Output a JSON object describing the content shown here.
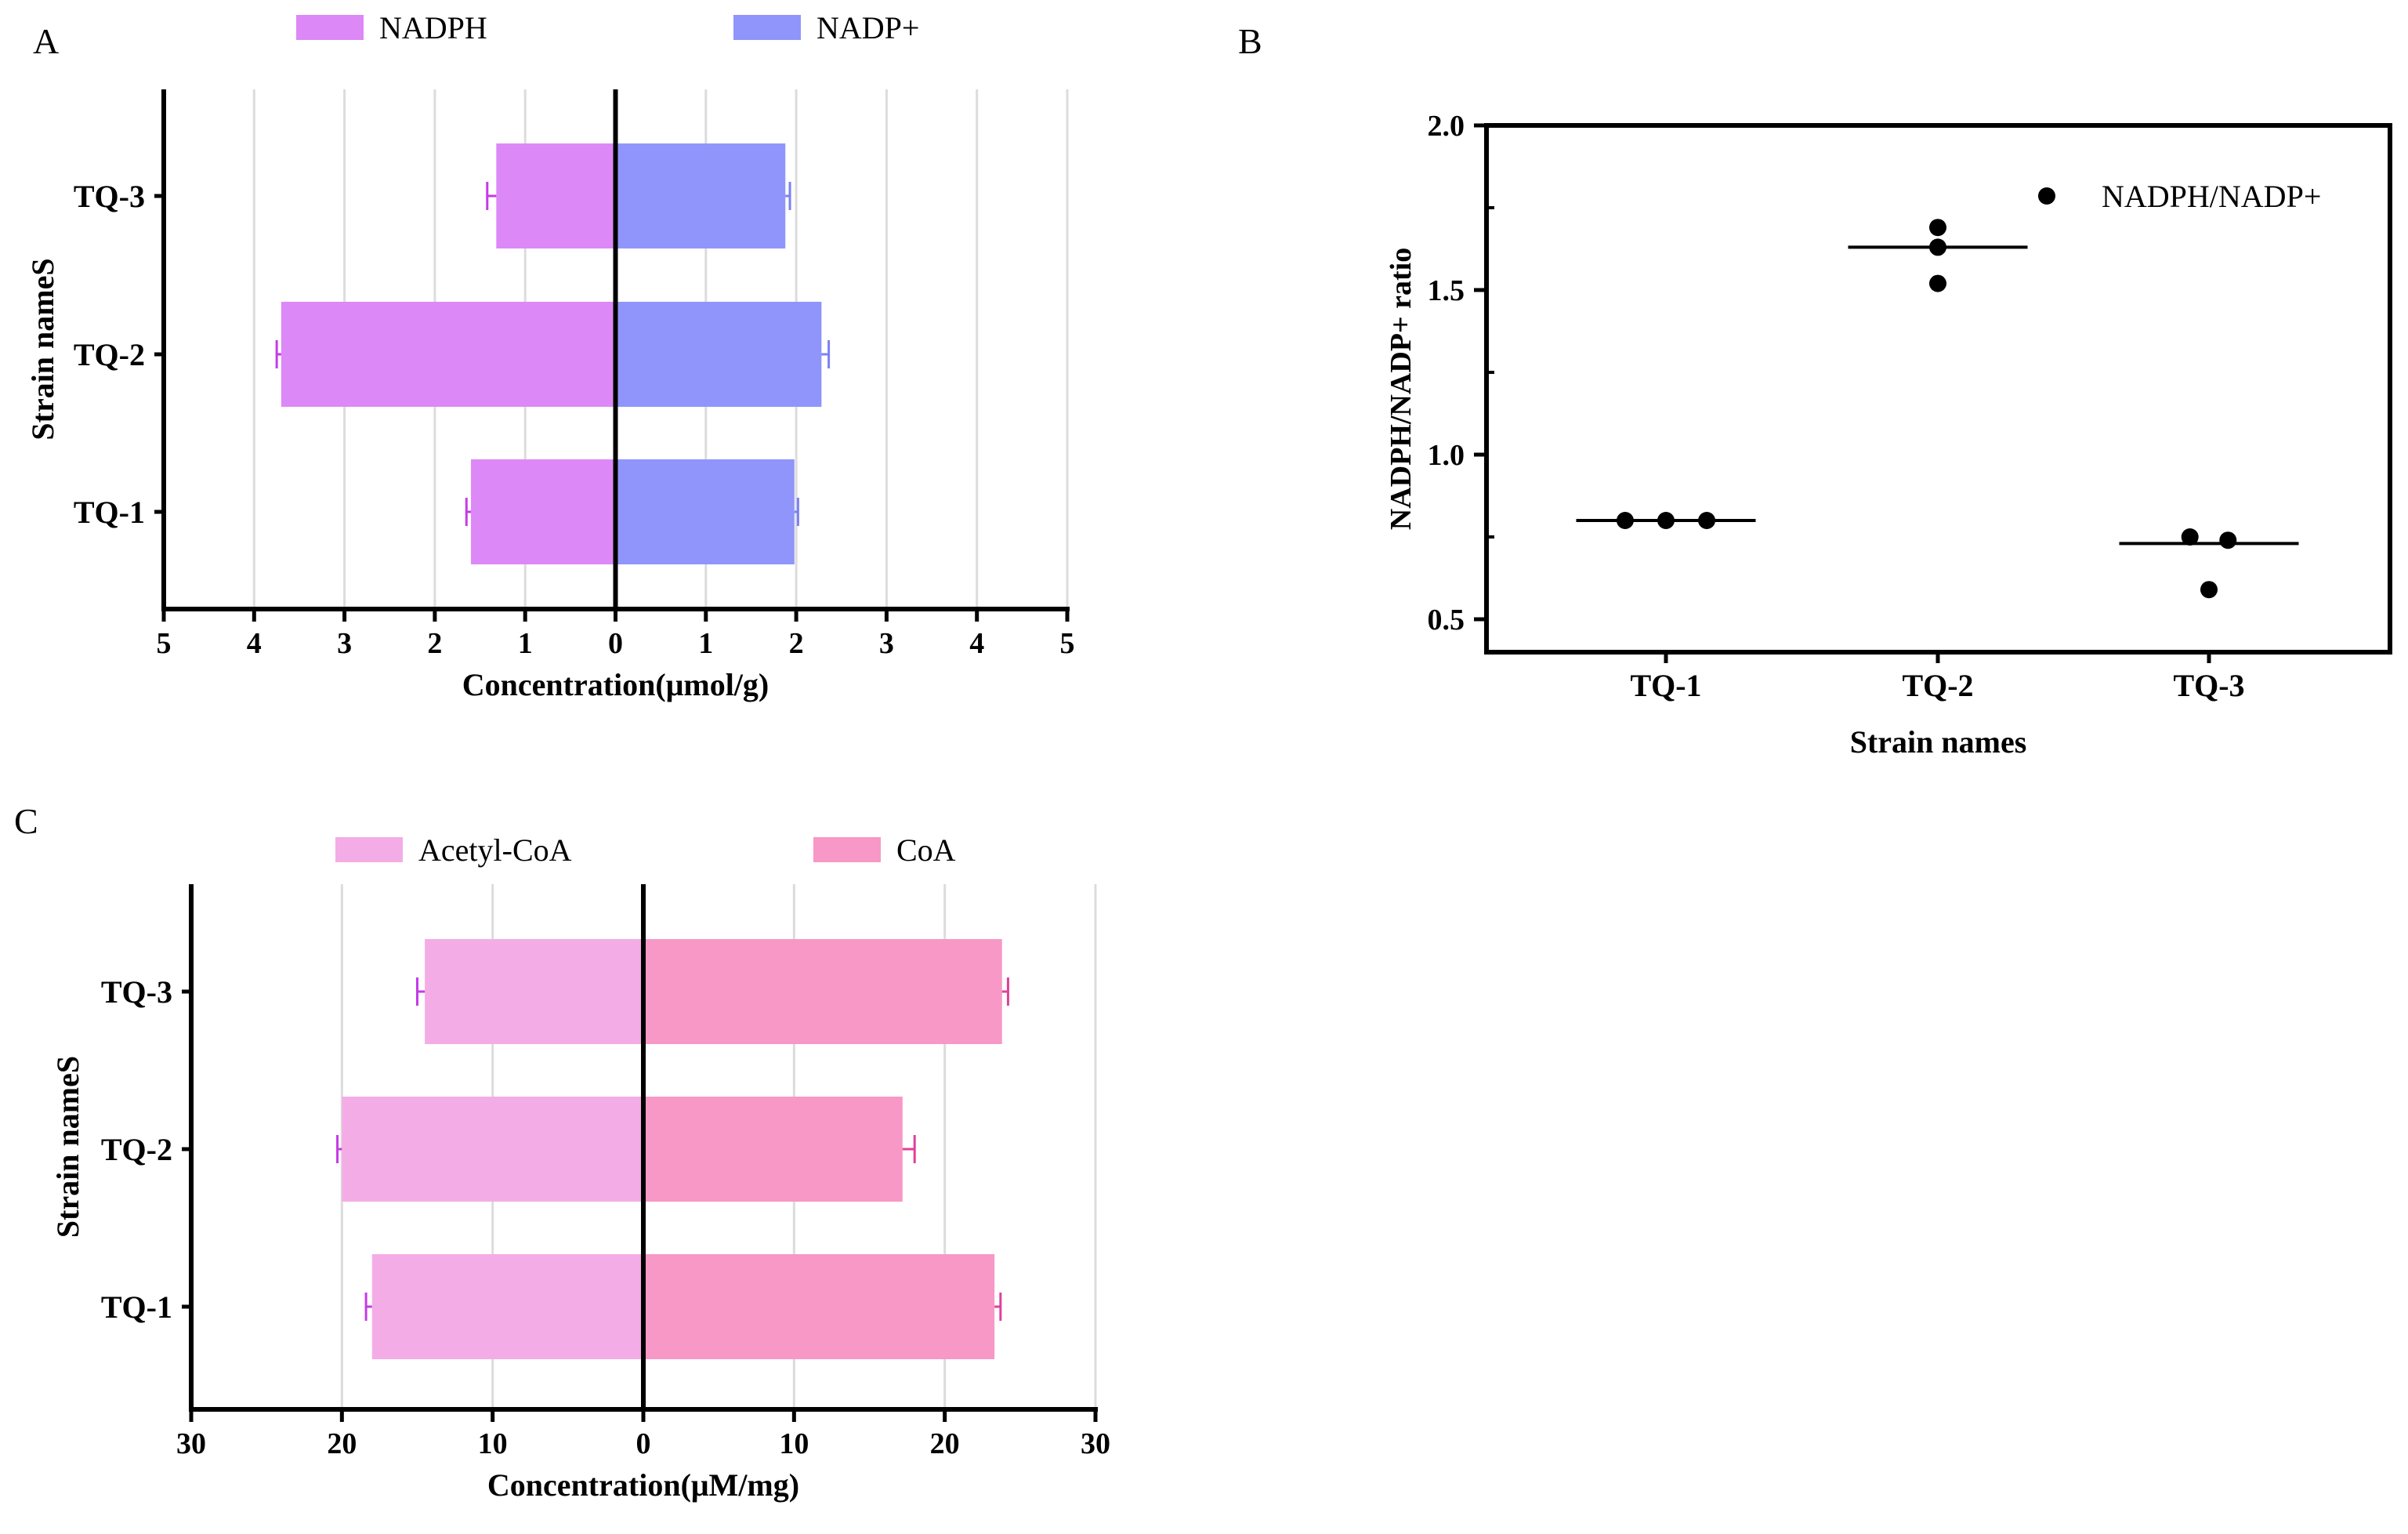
{
  "chart_data": [
    {
      "panel": "A",
      "type": "bar",
      "orientation": "horizontal-butterfly",
      "categories": [
        "TQ-1",
        "TQ-2",
        "TQ-3"
      ],
      "series": [
        {
          "name": "NADPH",
          "side": "left",
          "color": "#dd88f7",
          "values": [
            1.6,
            3.7,
            1.32
          ],
          "errors": [
            0.05,
            0.05,
            0.1
          ]
        },
        {
          "name": "NADP+",
          "side": "right",
          "color": "#9095fb",
          "values": [
            1.98,
            2.28,
            1.88
          ],
          "errors": [
            0.04,
            0.08,
            0.05
          ]
        }
      ],
      "xlim": [
        -5,
        5
      ],
      "xticks": [
        -5,
        -4,
        -3,
        -2,
        -1,
        0,
        1,
        2,
        3,
        4,
        5
      ],
      "xtick_labels": [
        "5",
        "4",
        "3",
        "2",
        "1",
        "0",
        "1",
        "2",
        "3",
        "4",
        "5"
      ],
      "xlabel": "Concentration(μmol/g)",
      "ylabel": "Strain nameS",
      "grid": true,
      "error_color_left": "#c53ae6",
      "error_color_right": "#7b80f5"
    },
    {
      "panel": "B",
      "type": "scatter",
      "categories": [
        "TQ-1",
        "TQ-2",
        "TQ-3"
      ],
      "points": [
        {
          "category": "TQ-1",
          "offset": -0.15,
          "y": 0.8
        },
        {
          "category": "TQ-1",
          "offset": 0.0,
          "y": 0.8
        },
        {
          "category": "TQ-1",
          "offset": 0.15,
          "y": 0.8
        },
        {
          "category": "TQ-2",
          "offset": 0.0,
          "y": 1.69
        },
        {
          "category": "TQ-2",
          "offset": 0.0,
          "y": 1.63
        },
        {
          "category": "TQ-2",
          "offset": 0.0,
          "y": 1.52
        },
        {
          "category": "TQ-3",
          "offset": -0.07,
          "y": 0.75
        },
        {
          "category": "TQ-3",
          "offset": 0.07,
          "y": 0.74
        },
        {
          "category": "TQ-3",
          "offset": 0.0,
          "y": 0.59
        }
      ],
      "means": [
        0.8,
        1.63,
        0.73
      ],
      "ylim": [
        0.4,
        2.0
      ],
      "yticks": [
        0.5,
        1.0,
        1.5,
        2.0
      ],
      "ytick_labels": [
        "0.5",
        "1.0",
        "1.5",
        "2.0"
      ],
      "xlabel": "Strain names",
      "ylabel": "NADPH/NADP+ ratio",
      "legend": "NADPH/NADP+",
      "legend_position": "top-right",
      "grid": false,
      "color": "#000000"
    },
    {
      "panel": "C",
      "type": "bar",
      "orientation": "horizontal-butterfly",
      "categories": [
        "TQ-1",
        "TQ-2",
        "TQ-3"
      ],
      "series": [
        {
          "name": "Acetyl-CoA",
          "side": "left",
          "color": "#f4ace6",
          "values": [
            18.0,
            20.0,
            14.5
          ],
          "errors": [
            0.4,
            0.3,
            0.5
          ]
        },
        {
          "name": "CoA",
          "side": "right",
          "color": "#f798c6",
          "values": [
            23.3,
            17.2,
            23.8
          ],
          "errors": [
            0.4,
            0.8,
            0.4
          ]
        }
      ],
      "xlim": [
        -30,
        30
      ],
      "xticks": [
        -30,
        -20,
        -10,
        0,
        10,
        20,
        30
      ],
      "xtick_labels": [
        "30",
        "20",
        "10",
        "0",
        "10",
        "20",
        "30"
      ],
      "xlabel": "Concentration(μM/mg)",
      "ylabel": "Strain nameS",
      "grid": true,
      "error_color_left": "#c53ae6",
      "error_color_right": "#e0409a"
    }
  ],
  "panel_labels": {
    "a": "A",
    "b": "B",
    "c": "C"
  }
}
